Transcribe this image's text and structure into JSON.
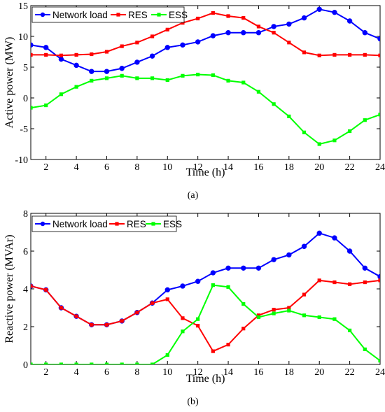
{
  "chart_data": [
    {
      "type": "line",
      "caption": "(a)",
      "xlabel": "Time (h)",
      "ylabel": "Active power (MW)",
      "xlim": [
        1,
        24
      ],
      "ylim": [
        -10,
        15
      ],
      "xticks": [
        2,
        4,
        6,
        8,
        10,
        12,
        14,
        16,
        18,
        20,
        22,
        24
      ],
      "yticks": [
        -10,
        -5,
        0,
        5,
        10,
        15
      ],
      "grid": false,
      "legend": "top-left",
      "x": [
        1,
        2,
        3,
        4,
        5,
        6,
        7,
        8,
        9,
        10,
        11,
        12,
        13,
        14,
        15,
        16,
        17,
        18,
        19,
        20,
        21,
        22,
        23,
        24
      ],
      "series": [
        {
          "name": "Network load",
          "color": "#0000ff",
          "marker": "circle",
          "values": [
            8.6,
            8.2,
            6.3,
            5.3,
            4.3,
            4.3,
            4.8,
            5.8,
            6.8,
            8.2,
            8.6,
            9.1,
            10.1,
            10.6,
            10.6,
            10.6,
            11.6,
            12.0,
            13.0,
            14.4,
            13.9,
            12.5,
            10.6,
            9.6
          ]
        },
        {
          "name": "RES",
          "color": "#ff0000",
          "marker": "square",
          "values": [
            7.0,
            7.0,
            6.9,
            7.0,
            7.1,
            7.5,
            8.4,
            9.0,
            10.0,
            11.1,
            12.2,
            12.9,
            13.8,
            13.3,
            13.0,
            11.6,
            10.6,
            9.0,
            7.4,
            6.9,
            7.0,
            7.0,
            7.0,
            6.9
          ]
        },
        {
          "name": "ESS",
          "color": "#00ff00",
          "marker": "square",
          "values": [
            -1.6,
            -1.2,
            0.6,
            1.8,
            2.8,
            3.2,
            3.6,
            3.2,
            3.2,
            2.9,
            3.6,
            3.8,
            3.7,
            2.8,
            2.5,
            1.0,
            -1.0,
            -3.0,
            -5.6,
            -7.5,
            -6.9,
            -5.4,
            -3.6,
            -2.7
          ]
        }
      ]
    },
    {
      "type": "line",
      "caption": "(b)",
      "xlabel": "Time (h)",
      "ylabel": "Reactive power (MVAr)",
      "xlim": [
        1,
        24
      ],
      "ylim": [
        0,
        8
      ],
      "xticks": [
        2,
        4,
        6,
        8,
        10,
        12,
        14,
        16,
        18,
        20,
        22,
        24
      ],
      "yticks": [
        0,
        2,
        4,
        6,
        8
      ],
      "grid": false,
      "legend": "top-left",
      "x": [
        1,
        2,
        3,
        4,
        5,
        6,
        7,
        8,
        9,
        10,
        11,
        12,
        13,
        14,
        15,
        16,
        17,
        18,
        19,
        20,
        21,
        22,
        23,
        24
      ],
      "series": [
        {
          "name": "Network load",
          "color": "#0000ff",
          "marker": "circle",
          "values": [
            4.15,
            3.95,
            3.0,
            2.55,
            2.1,
            2.1,
            2.3,
            2.75,
            3.25,
            3.95,
            4.15,
            4.4,
            4.85,
            5.1,
            5.1,
            5.1,
            5.55,
            5.8,
            6.25,
            6.95,
            6.7,
            6.0,
            5.1,
            4.65
          ]
        },
        {
          "name": "RES",
          "color": "#ff0000",
          "marker": "square",
          "values": [
            4.15,
            3.95,
            3.0,
            2.55,
            2.1,
            2.1,
            2.3,
            2.75,
            3.25,
            3.45,
            2.45,
            2.05,
            0.7,
            1.05,
            1.9,
            2.6,
            2.9,
            3.0,
            3.7,
            4.45,
            4.35,
            4.25,
            4.35,
            4.45
          ]
        },
        {
          "name": "ESS",
          "color": "#00ff00",
          "marker": "square",
          "values": [
            0,
            0,
            0,
            0,
            0,
            0,
            0,
            0,
            0,
            0.5,
            1.75,
            2.4,
            4.2,
            4.1,
            3.2,
            2.5,
            2.7,
            2.85,
            2.6,
            2.5,
            2.4,
            1.8,
            0.8,
            0.2
          ]
        }
      ]
    }
  ]
}
